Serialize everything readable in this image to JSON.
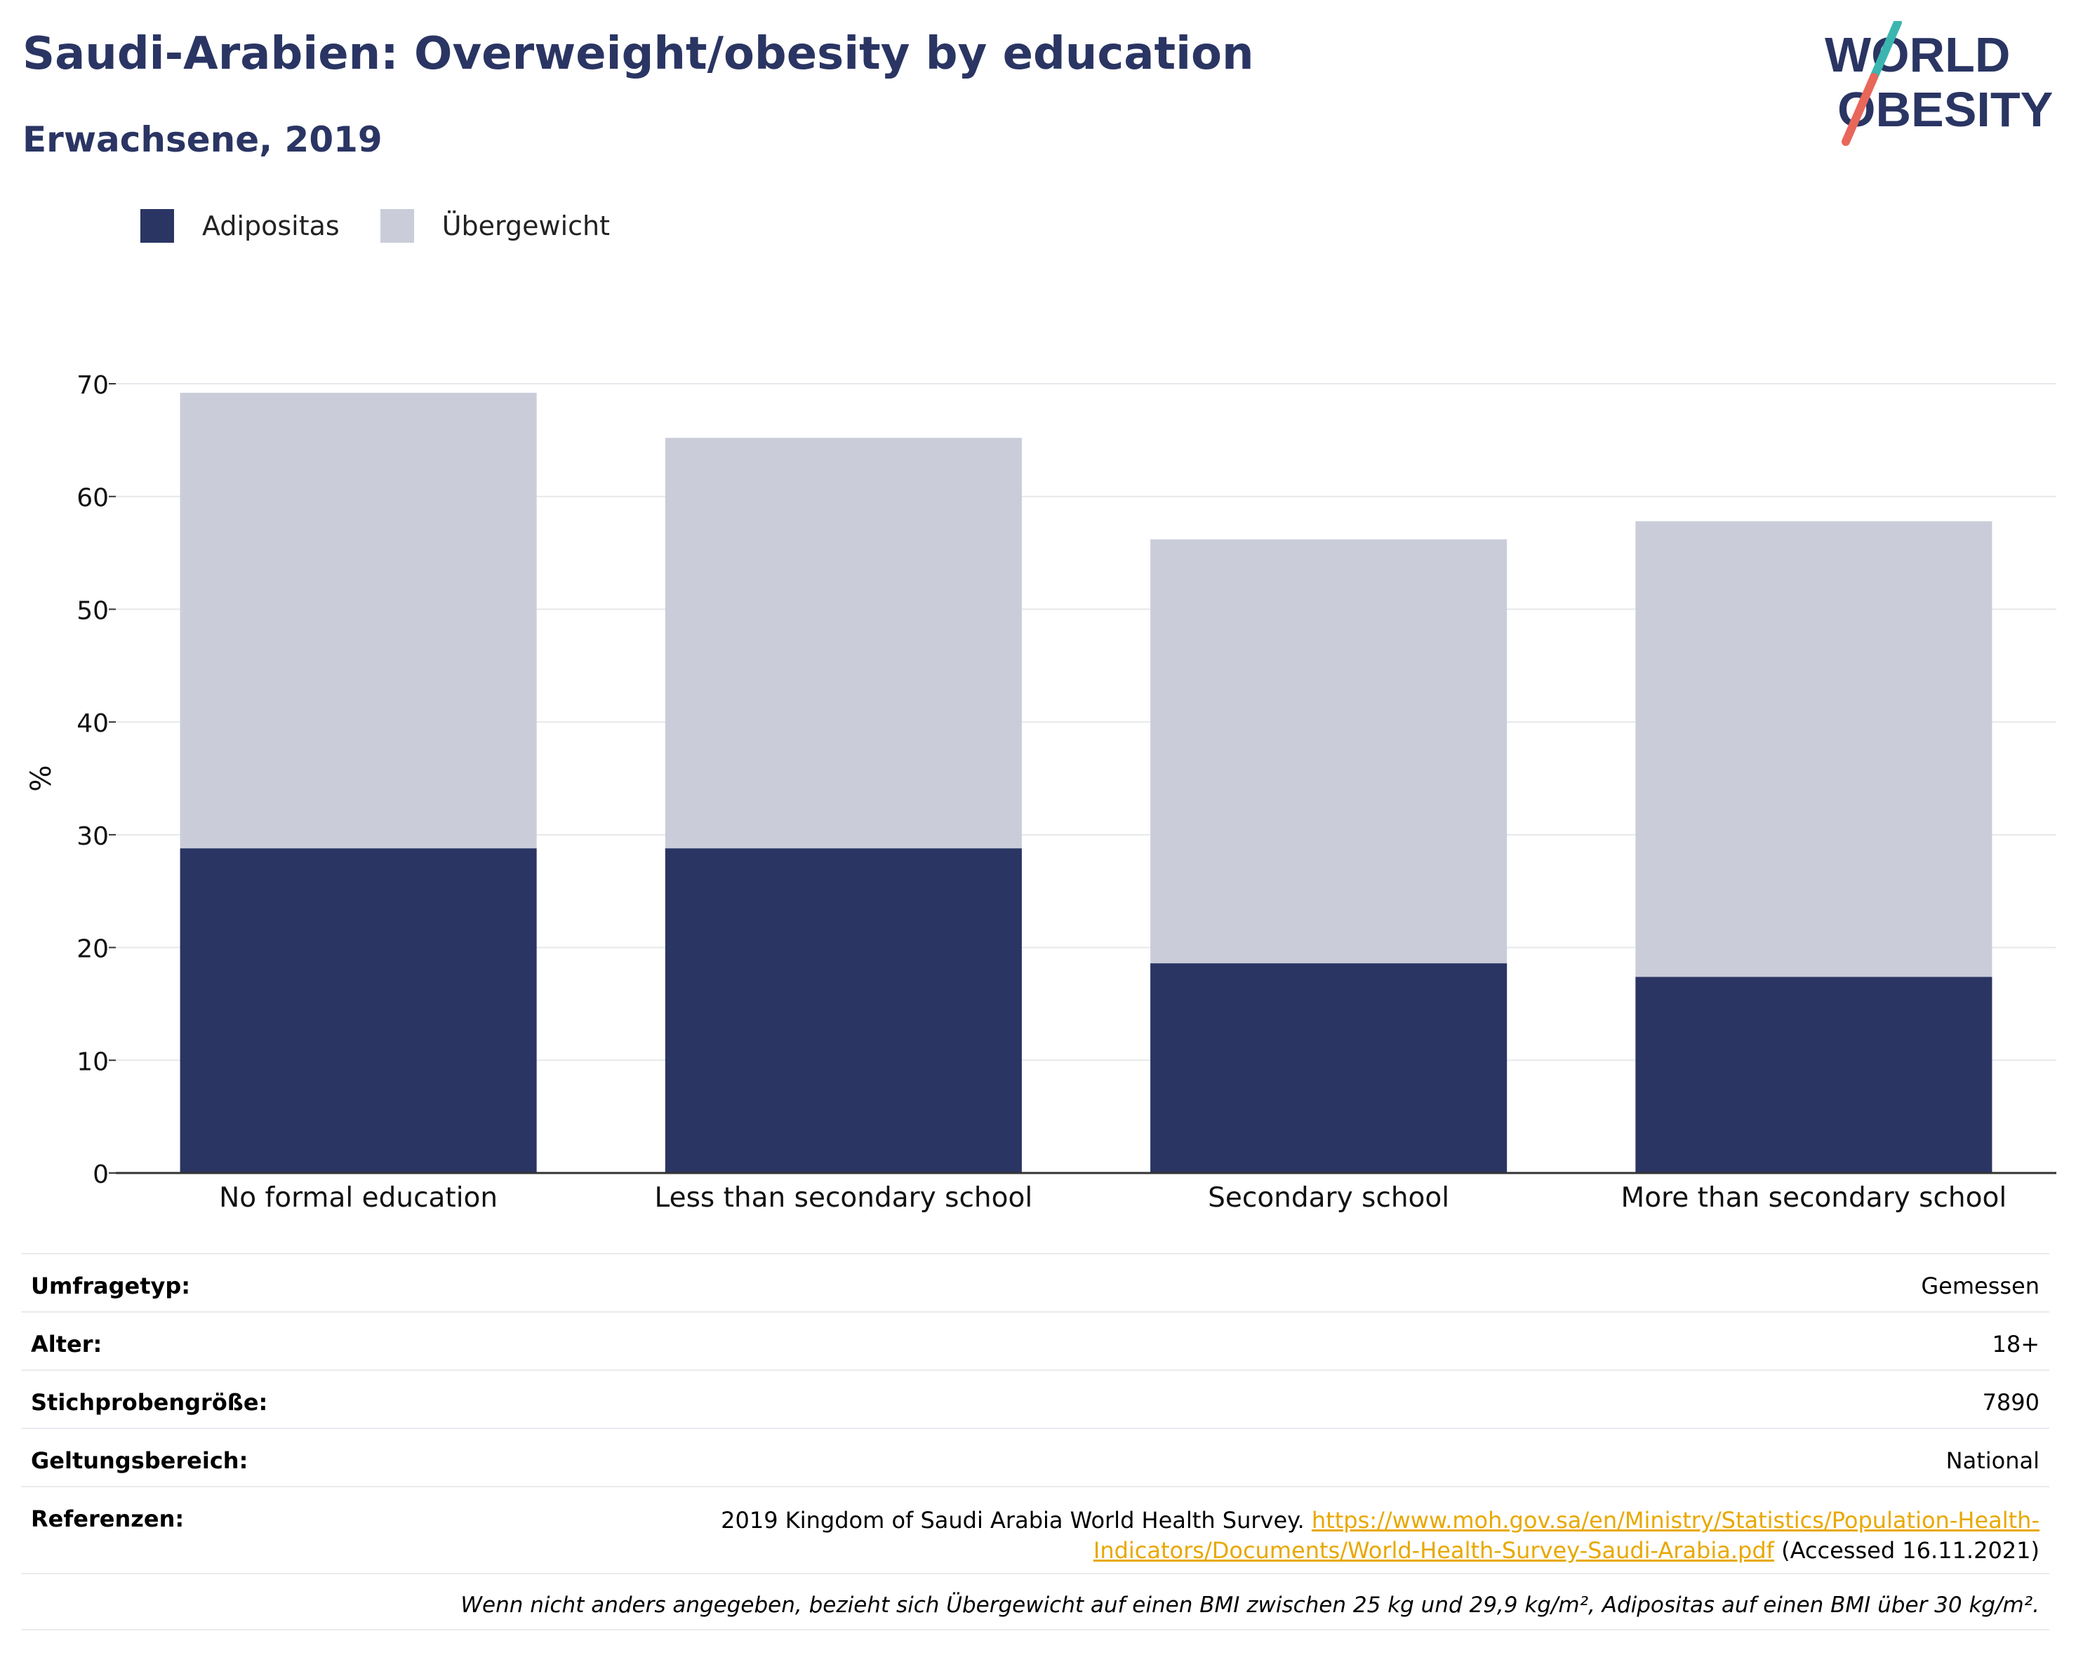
{
  "header": {
    "title": "Saudi-Arabien: Overweight/obesity by education",
    "subtitle": "Erwachsene, 2019",
    "logo_text_line1": "WORLD",
    "logo_text_line2": "OBESITY"
  },
  "legend": {
    "items": [
      {
        "label": "Adipositas",
        "color": "#2a3563"
      },
      {
        "label": "Übergewicht",
        "color": "#cacdd9"
      }
    ]
  },
  "chart_data": {
    "type": "bar",
    "stacked": true,
    "title": "Saudi-Arabien: Overweight/obesity by education",
    "subtitle": "Erwachsene, 2019",
    "ylabel": "%",
    "ylim": [
      0,
      70
    ],
    "yticks": [
      0,
      10,
      20,
      30,
      40,
      50,
      60,
      70
    ],
    "grid": true,
    "legend_position": "top-left",
    "categories": [
      "No formal education",
      "Less than secondary school",
      "Secondary school",
      "More than secondary school"
    ],
    "series": [
      {
        "name": "Adipositas",
        "color": "#2a3563",
        "values": [
          28.8,
          28.8,
          18.6,
          17.4
        ]
      },
      {
        "name": "Übergewicht",
        "color": "#cacdd9",
        "values": [
          40.4,
          36.4,
          37.6,
          40.4
        ]
      }
    ]
  },
  "info": {
    "survey_type": {
      "label": "Umfragetyp:",
      "value": "Gemessen"
    },
    "age": {
      "label": "Alter:",
      "value": "18+"
    },
    "sample_size": {
      "label": "Stichprobengröße:",
      "value": "7890"
    },
    "scope": {
      "label": "Geltungsbereich:",
      "value": "National"
    },
    "references": {
      "label": "Referenzen:",
      "text": "2019 Kingdom of Saudi Arabia World Health Survey.",
      "link_part1": "https://www.moh.gov.sa/en/Ministry/Statistics/Population-Health-",
      "link_part2": "Indicators/Documents/World-Health-Survey-Saudi-Arabia.pdf",
      "accessed": "(Accessed 16.11.2021)"
    },
    "footnote": "Wenn nicht anders angegeben, bezieht sich Übergewicht auf einen BMI zwischen 25 kg und 29,9 kg/m², Adipositas auf einen BMI über 30 kg/m²."
  }
}
